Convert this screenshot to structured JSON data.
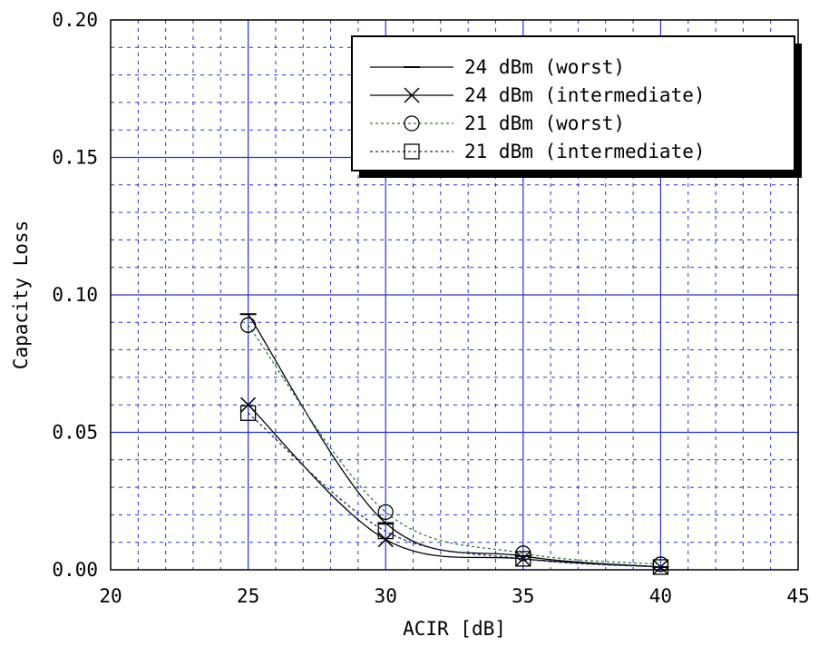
{
  "chart_data": {
    "type": "line",
    "title": "",
    "xlabel": "ACIR [dB]",
    "ylabel": "Capacity Loss",
    "xlim": [
      20,
      45
    ],
    "ylim": [
      0,
      0.2
    ],
    "x_ticks": [
      "20",
      "25",
      "30",
      "35",
      "40",
      "45"
    ],
    "y_ticks": [
      "0.00",
      "0.05",
      "0.10",
      "0.15",
      "0.20"
    ],
    "grid": "major solid blue, minor dashed blue",
    "legend_position": "top-right",
    "x": [
      25,
      30,
      35,
      40
    ],
    "series": [
      {
        "name": "24 dBm (worst)",
        "marker": "dash",
        "line": "solid",
        "color": "#000000",
        "values": [
          0.093,
          0.017,
          0.005,
          0.001
        ]
      },
      {
        "name": "24 dBm (intermediate)",
        "marker": "x",
        "line": "solid",
        "color": "#000000",
        "values": [
          0.06,
          0.011,
          0.004,
          0.001
        ]
      },
      {
        "name": "21 dBm (worst)",
        "marker": "circle",
        "line": "dotted",
        "color": "#2e7d32",
        "values": [
          0.089,
          0.021,
          0.006,
          0.002
        ]
      },
      {
        "name": "21 dBm (intermediate)",
        "marker": "square",
        "line": "dotted",
        "color": "#1a237e",
        "values": [
          0.057,
          0.014,
          0.004,
          0.001
        ]
      }
    ]
  }
}
